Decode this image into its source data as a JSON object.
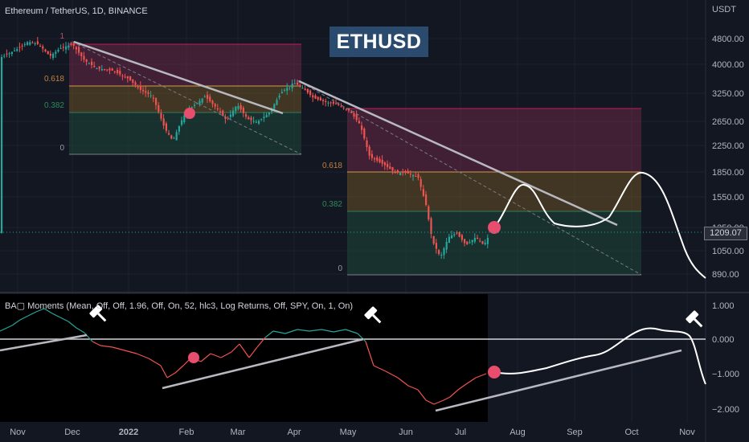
{
  "header": {
    "symbol_line": "Ethereum / TetherUS, 1D, BINANCE",
    "title_badge": "ETHUSD",
    "price_unit": "USDT",
    "last_price": "1209.07"
  },
  "indicator": {
    "label": "BA▢ Moments (Mean, Off, Off, 1.96, Off, On, 52, hlc3, Log Returns, Off, SPY, On, 1, On)"
  },
  "chart_data": [
    {
      "type": "line",
      "name": "price",
      "title": "Ethereum / TetherUS, 1D, BINANCE",
      "y_scale": "log",
      "ylabel": "USDT",
      "yticks": [
        "4800.00",
        "4000.00",
        "3250.00",
        "2650.00",
        "2250.00",
        "1850.00",
        "1550.00",
        "1250.00",
        "1050.00",
        "890.00"
      ],
      "last_price": 1209.07,
      "series_approx_close": [
        {
          "x": "Nov",
          "y": 4300
        },
        {
          "x": "Dec",
          "y": 4400
        },
        {
          "x": "2022",
          "y": 3700
        },
        {
          "x": "Late Jan",
          "y": 2400
        },
        {
          "x": "Feb",
          "y": 2900
        },
        {
          "x": "Mar",
          "y": 2800
        },
        {
          "x": "Apr",
          "y": 3500
        },
        {
          "x": "May",
          "y": 2800
        },
        {
          "x": "Jun",
          "y": 1800
        },
        {
          "x": "Mid Jun",
          "y": 1050
        },
        {
          "x": "Jul",
          "y": 1100
        },
        {
          "x": "Mid Jul",
          "y": 1209
        }
      ],
      "projection": [
        {
          "x": "Late Jul",
          "y": 1209
        },
        {
          "x": "Aug",
          "y": 1700
        },
        {
          "x": "Mid Aug",
          "y": 1300
        },
        {
          "x": "Sep",
          "y": 1300
        },
        {
          "x": "Oct",
          "y": 1850
        },
        {
          "x": "Nov",
          "y": 880
        }
      ],
      "fib_zones": [
        {
          "levels": [
            "1",
            "0.618",
            "0.382",
            "0"
          ]
        },
        {
          "levels": [
            "0.618",
            "0.382",
            "0"
          ]
        }
      ],
      "colors": {
        "up": "#26a69a",
        "down": "#ef5350",
        "marker": "#e84d6e"
      }
    },
    {
      "type": "line",
      "name": "oscillator",
      "yticks": [
        "1.000",
        "0.000",
        "−1.000",
        "−2.000"
      ],
      "ylim": [
        -2.2,
        1.1
      ],
      "xticks": [
        "Nov",
        "Dec",
        "2022",
        "Feb",
        "Mar",
        "Apr",
        "May",
        "Jun",
        "Jul",
        "Aug",
        "Sep",
        "Oct",
        "Nov"
      ],
      "colors": {
        "positive": "#26a69a",
        "negative": "#ef5350",
        "projection": "#ffffff"
      }
    }
  ]
}
